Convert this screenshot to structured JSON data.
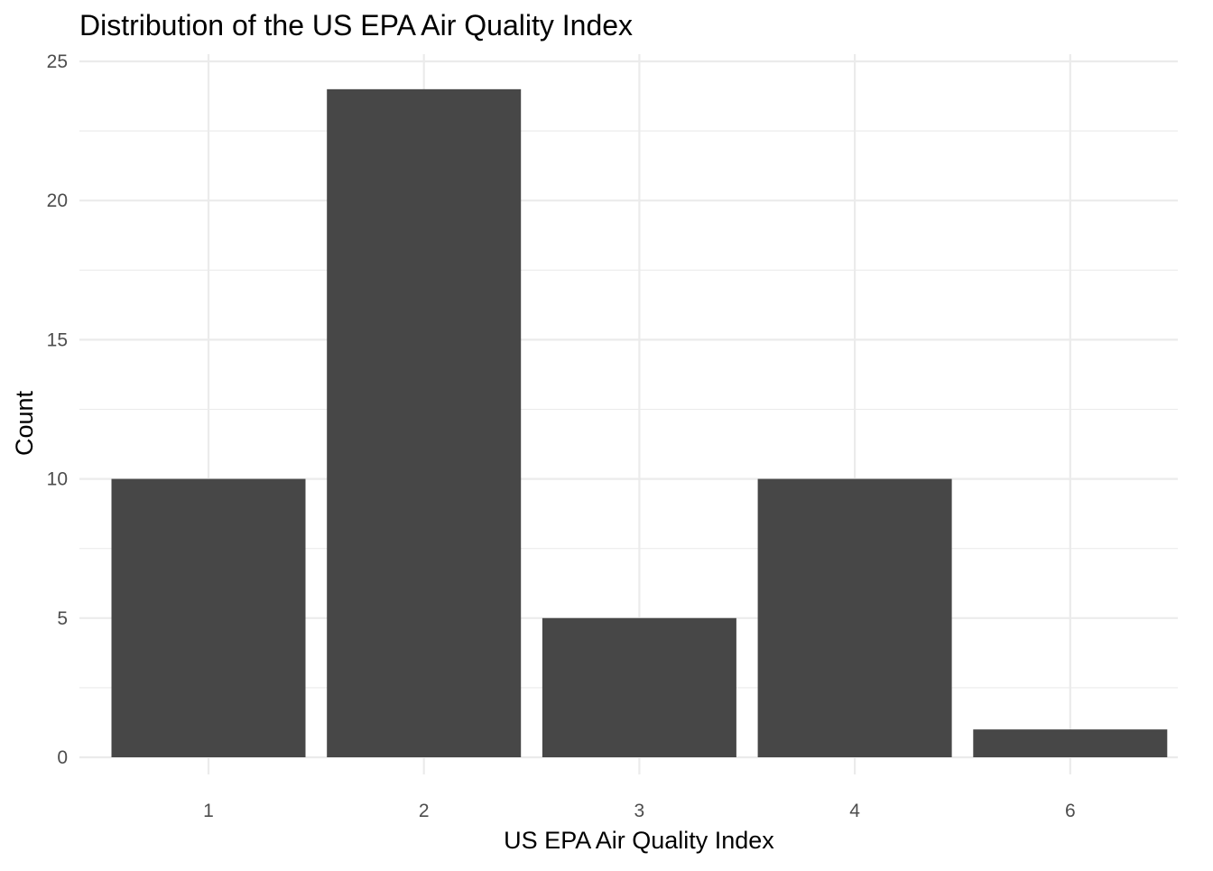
{
  "chart_data": {
    "type": "bar",
    "title": "Distribution of the US EPA Air Quality Index",
    "xlabel": "US EPA Air Quality Index",
    "ylabel": "Count",
    "categories": [
      "1",
      "2",
      "3",
      "4",
      "6"
    ],
    "values": [
      10,
      24,
      5,
      10,
      1
    ],
    "ylim": [
      0,
      25
    ],
    "yticks": [
      0,
      5,
      10,
      15,
      20,
      25
    ],
    "ytick_labels": [
      "0",
      "5",
      "10",
      "15",
      "20",
      "25"
    ],
    "grid": true,
    "legend": "none",
    "colors": {
      "bar": "#474747",
      "grid": "#ebebeb",
      "tick_text": "#4d4d4d",
      "text": "#000000",
      "background": "#ffffff"
    }
  }
}
